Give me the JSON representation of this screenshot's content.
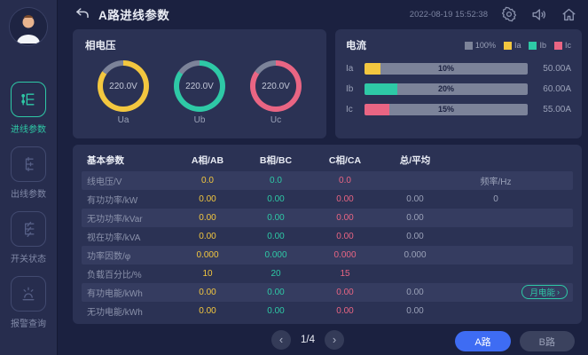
{
  "colors": {
    "yellow": "#f3c73f",
    "teal": "#2ec9a6",
    "pink": "#e96583",
    "track": "#7c8399",
    "blue": "#3e6cf3"
  },
  "topbar": {
    "title": "A路进线参数",
    "timestamp": "2022-08-19 15:52:38"
  },
  "sidebar": {
    "items": [
      {
        "label": "进线参数",
        "active": true
      },
      {
        "label": "出线参数",
        "active": false
      },
      {
        "label": "开关状态",
        "active": false
      },
      {
        "label": "报警查询",
        "active": false
      }
    ]
  },
  "voltage_panel": {
    "title": "相电压",
    "gauges": [
      {
        "label": "Ua",
        "value": "220.0V",
        "color": "#f3c73f",
        "fill_deg": 305
      },
      {
        "label": "Ub",
        "value": "220.0V",
        "color": "#2ec9a6",
        "fill_deg": 305
      },
      {
        "label": "Uc",
        "value": "220.0V",
        "color": "#e96583",
        "fill_deg": 305
      }
    ]
  },
  "current_panel": {
    "title": "电流",
    "legend": [
      {
        "label": "100%",
        "color": "#7c8399"
      },
      {
        "label": "Ia",
        "color": "#f3c73f"
      },
      {
        "label": "Ib",
        "color": "#2ec9a6"
      },
      {
        "label": "Ic",
        "color": "#e96583"
      }
    ],
    "bars": [
      {
        "label": "Ia",
        "percent": 10,
        "percent_label": "10%",
        "value": "50.00A",
        "color": "#f3c73f"
      },
      {
        "label": "Ib",
        "percent": 20,
        "percent_label": "20%",
        "value": "60.00A",
        "color": "#2ec9a6"
      },
      {
        "label": "Ic",
        "percent": 15,
        "percent_label": "15%",
        "value": "55.00A",
        "color": "#e96583"
      }
    ]
  },
  "table": {
    "title": "基本参数",
    "headers": [
      "A相/AB",
      "B相/BC",
      "C相/CA",
      "总/平均"
    ],
    "month_energy_label": "月电能",
    "rows": [
      {
        "label": "线电压/V",
        "a": "0.0",
        "b": "0.0",
        "c": "0.0",
        "total": "",
        "extra": "频率/Hz"
      },
      {
        "label": "有功功率/kW",
        "a": "0.00",
        "b": "0.00",
        "c": "0.00",
        "total": "0.00",
        "extra": "0"
      },
      {
        "label": "无功功率/kVar",
        "a": "0.00",
        "b": "0.00",
        "c": "0.00",
        "total": "0.00",
        "extra": ""
      },
      {
        "label": "视在功率/kVA",
        "a": "0.00",
        "b": "0.00",
        "c": "0.00",
        "total": "0.00",
        "extra": ""
      },
      {
        "label": "功率因数/φ",
        "a": "0.000",
        "b": "0.000",
        "c": "0.000",
        "total": "0.000",
        "extra": ""
      },
      {
        "label": "负载百分比/%",
        "a": "10",
        "b": "20",
        "c": "15",
        "total": "",
        "extra": ""
      },
      {
        "label": "有功电能/kWh",
        "a": "0.00",
        "b": "0.00",
        "c": "0.00",
        "total": "0.00",
        "extra": ""
      },
      {
        "label": "无功电能/kWh",
        "a": "0.00",
        "b": "0.00",
        "c": "0.00",
        "total": "0.00",
        "extra": ""
      }
    ]
  },
  "footer": {
    "page": "1/4",
    "route_a": "A路",
    "route_b": "B路"
  }
}
